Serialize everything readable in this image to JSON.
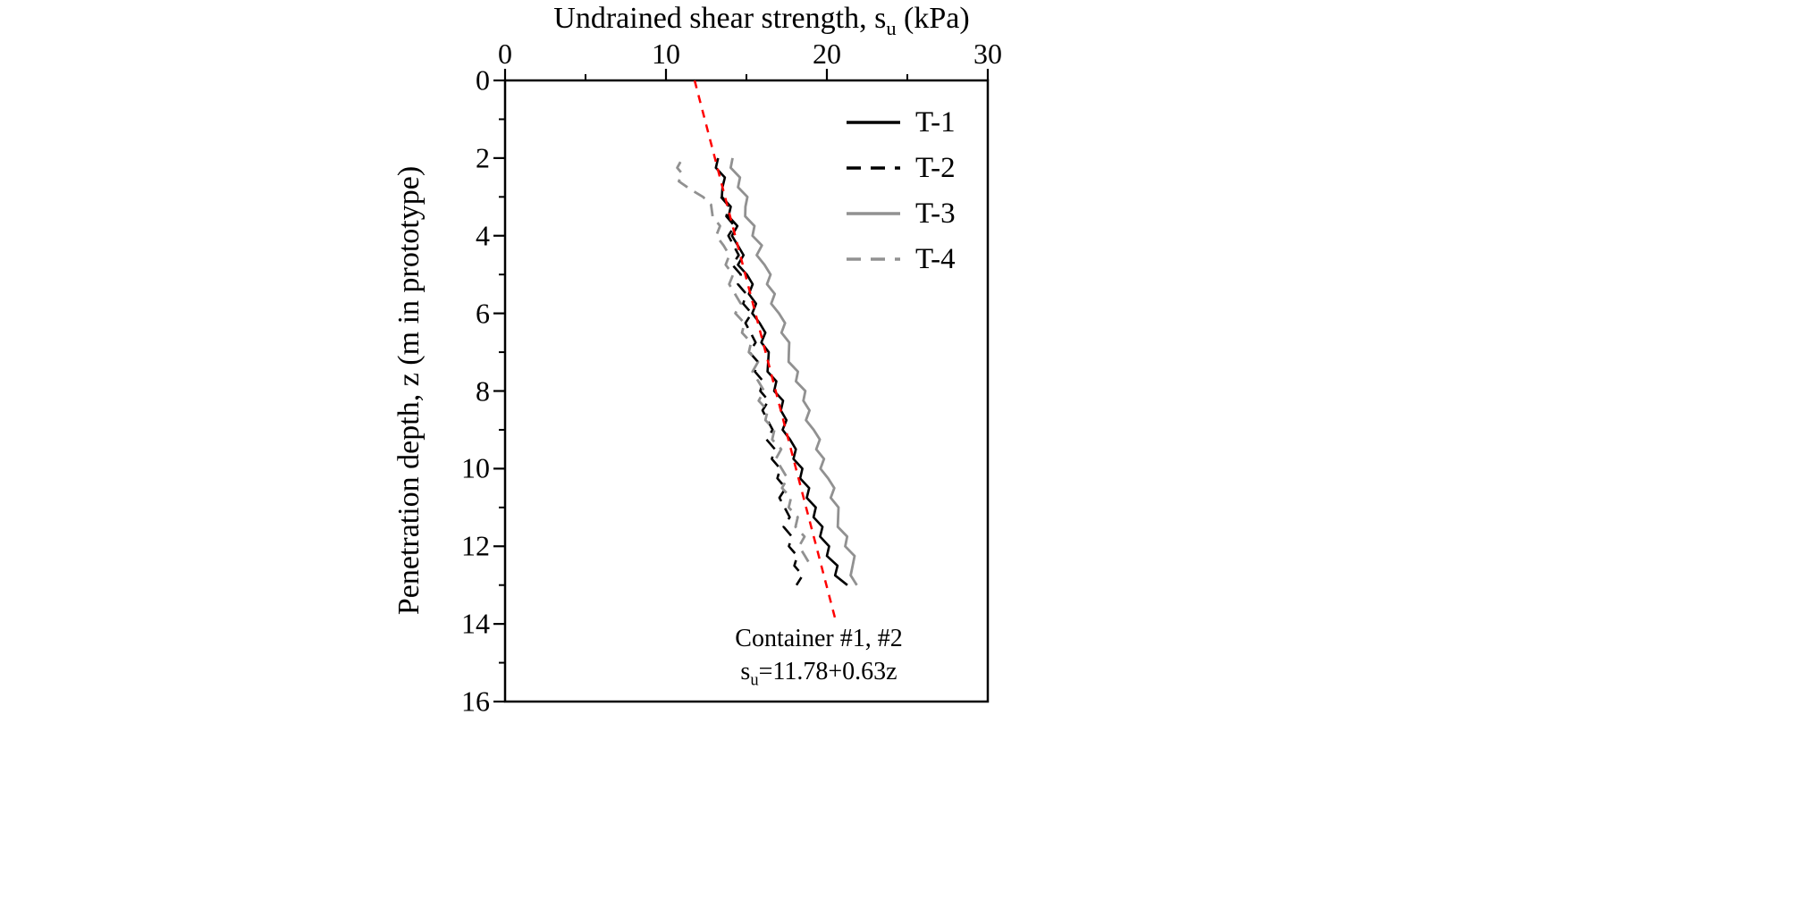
{
  "chart_data": {
    "type": "line",
    "xlabel": {
      "pre": "Undrained shear strength, s",
      "sub": "u",
      "post": " (kPa)"
    },
    "ylabel": "Penetration depth, z (m in prototype)",
    "xlim": [
      0,
      30
    ],
    "ylim": [
      0,
      16
    ],
    "x_ticks": [
      0,
      10,
      20,
      30
    ],
    "x_minor_ticks": [
      5,
      15,
      25
    ],
    "y_ticks": [
      0,
      2,
      4,
      6,
      8,
      10,
      12,
      14,
      16
    ],
    "y_minor_ticks": [
      1,
      3,
      5,
      7,
      9,
      11,
      13,
      15
    ],
    "y_axis_inverted": true,
    "legend_position": "top-right-inside",
    "grid": false,
    "series": [
      {
        "name": "T-1",
        "color": "#000000",
        "dash": null,
        "width": 2.6,
        "z": [
          2,
          2.25,
          2.5,
          2.75,
          3,
          3.25,
          3.5,
          3.75,
          4,
          4.25,
          4.5,
          4.75,
          5,
          5.25,
          5.5,
          5.75,
          6,
          6.25,
          6.5,
          6.75,
          7,
          7.25,
          7.5,
          7.75,
          8,
          8.25,
          8.5,
          8.75,
          9,
          9.25,
          9.5,
          9.75,
          10,
          10.25,
          10.5,
          10.75,
          11,
          11.25,
          11.5,
          11.75,
          12,
          12.25,
          12.5,
          12.75,
          13
        ],
        "su": [
          13.24,
          13.1,
          13.66,
          13.51,
          13.47,
          14.03,
          13.89,
          14.44,
          14.1,
          14.46,
          14.82,
          14.47,
          15.03,
          15.39,
          15.15,
          15.6,
          15.36,
          15.82,
          16.18,
          15.93,
          16.39,
          16.35,
          16.31,
          16.86,
          16.72,
          17.28,
          17.14,
          17.49,
          17.25,
          17.71,
          18.07,
          17.92,
          18.48,
          18.34,
          18.9,
          18.75,
          19.31,
          19.17,
          19.73,
          19.58,
          20.14,
          20.0,
          20.66,
          20.51,
          21.27
        ]
      },
      {
        "name": "T-2",
        "color": "#000000",
        "dash": "14 9",
        "width": 2.6,
        "z": [
          3,
          3.25,
          3.5,
          3.75,
          4,
          4.25,
          4.5,
          4.75,
          5,
          5.25,
          5.5,
          5.75,
          6,
          6.25,
          6.5,
          6.75,
          7,
          7.25,
          7.5,
          7.75,
          8,
          8.25,
          8.5,
          8.75,
          9,
          9.25,
          9.5,
          9.75,
          10,
          10.25,
          10.5,
          10.75,
          11,
          11.25,
          11.5,
          11.75,
          12,
          12.25,
          12.5,
          12.75,
          13
        ],
        "su": [
          13.41,
          13.93,
          13.75,
          14.26,
          13.88,
          14.2,
          14.52,
          14.13,
          14.65,
          14.47,
          14.99,
          14.8,
          15.32,
          14.94,
          15.26,
          15.57,
          15.19,
          15.71,
          15.53,
          16.04,
          15.86,
          16.38,
          16.0,
          16.31,
          16.63,
          16.25,
          16.77,
          16.58,
          17.1,
          16.92,
          17.44,
          17.05,
          17.37,
          17.69,
          17.31,
          17.82,
          17.64,
          18.16,
          17.98,
          18.49,
          18.11
        ]
      },
      {
        "name": "T-3",
        "color": "#919191",
        "dash": null,
        "width": 2.8,
        "z": [
          2,
          2.25,
          2.5,
          2.75,
          3,
          3.25,
          3.5,
          3.75,
          4,
          4.25,
          4.5,
          4.75,
          5,
          5.25,
          5.5,
          5.75,
          6,
          6.25,
          6.5,
          6.75,
          7,
          7.25,
          7.5,
          7.75,
          8,
          8.25,
          8.5,
          8.75,
          9,
          9.25,
          9.5,
          9.75,
          10,
          10.25,
          10.5,
          10.75,
          11,
          11.25,
          11.5,
          11.75,
          12,
          12.25,
          12.5,
          12.75,
          13
        ],
        "su": [
          14.14,
          14.02,
          14.6,
          14.48,
          15.06,
          14.94,
          14.92,
          15.5,
          15.38,
          15.96,
          15.64,
          16.12,
          16.5,
          16.28,
          16.76,
          16.54,
          17.02,
          17.4,
          17.18,
          17.66,
          17.64,
          17.62,
          18.2,
          18.08,
          18.66,
          18.54,
          18.92,
          18.7,
          19.18,
          19.56,
          19.34,
          19.82,
          19.6,
          20.08,
          20.46,
          20.24,
          20.72,
          20.7,
          20.68,
          21.26,
          21.14,
          21.72,
          21.6,
          21.48,
          21.86
        ]
      },
      {
        "name": "T-4",
        "color": "#919191",
        "dash": "14 9",
        "width": 2.8,
        "z": [
          2.1,
          2.25,
          2.4,
          2.6,
          2.8,
          3,
          3.2,
          3.5,
          3.75,
          4,
          4.25,
          4.5,
          4.75,
          5,
          5.25,
          5.5,
          5.75,
          6,
          6.25,
          6.5,
          6.75,
          7,
          7.25,
          7.5,
          7.75,
          8,
          8.25,
          8.5,
          8.75,
          9,
          9.25,
          9.5,
          9.75,
          10,
          10.25,
          10.5,
          10.75,
          11,
          11.25,
          11.5,
          11.75,
          12,
          12.25,
          12.5
        ],
        "su": [
          10.9,
          10.7,
          11.0,
          10.8,
          11.5,
          12.3,
          12.8,
          12.9,
          13.36,
          13.12,
          13.58,
          13.94,
          13.71,
          14.17,
          13.93,
          14.29,
          14.65,
          14.31,
          14.87,
          14.73,
          15.29,
          15.15,
          15.72,
          15.38,
          15.74,
          16.1,
          15.76,
          16.32,
          16.18,
          16.74,
          16.6,
          17.16,
          16.83,
          17.19,
          17.55,
          17.21,
          17.77,
          17.63,
          18.19,
          18.05,
          18.61,
          18.27,
          18.64,
          19.0
        ]
      }
    ],
    "trend_line": {
      "color": "#ff0000",
      "dash": "9 8",
      "width": 2.5,
      "intercept": 11.78,
      "slope": 0.63,
      "z_range": [
        0,
        14
      ],
      "equation": "su=11.78+0.63z"
    },
    "annotation": {
      "line1": "Container #1, #2",
      "line2_pre": "s",
      "line2_sub": "u",
      "line2_post": "=11.78+0.63z"
    }
  }
}
